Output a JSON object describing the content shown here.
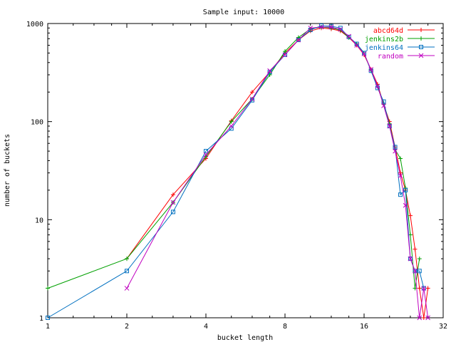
{
  "chart_data": {
    "type": "line",
    "title": "Sample input: 10000",
    "xlabel": "bucket length",
    "ylabel": "number of buckets",
    "x_scale": "log2",
    "y_scale": "log10",
    "xlim": [
      1,
      32
    ],
    "ylim": [
      1,
      1000
    ],
    "x_ticks": [
      1,
      2,
      4,
      8,
      16,
      32
    ],
    "y_ticks": [
      1,
      10,
      100,
      1000
    ],
    "grid": false,
    "legend_position": "top-right",
    "series": [
      {
        "name": "abcd64d",
        "color": "#ff0000",
        "marker": "plus",
        "points": [
          [
            2,
            4
          ],
          [
            3,
            18
          ],
          [
            4,
            42
          ],
          [
            5,
            102
          ],
          [
            6,
            200
          ],
          [
            7,
            320
          ],
          [
            8,
            500
          ],
          [
            9,
            680
          ],
          [
            10,
            840
          ],
          [
            11,
            900
          ],
          [
            12,
            880
          ],
          [
            13,
            840
          ],
          [
            14,
            720
          ],
          [
            15,
            600
          ],
          [
            16,
            480
          ],
          [
            17,
            340
          ],
          [
            18,
            240
          ],
          [
            19,
            150
          ],
          [
            20,
            100
          ],
          [
            21,
            55
          ],
          [
            22,
            30
          ],
          [
            23,
            20
          ],
          [
            24,
            11
          ],
          [
            25,
            5
          ],
          [
            26,
            2
          ],
          [
            27,
            1
          ],
          [
            28,
            2
          ]
        ]
      },
      {
        "name": "jenkins2b",
        "color": "#00a000",
        "marker": "plus",
        "points": [
          [
            1,
            2
          ],
          [
            2,
            4
          ],
          [
            3,
            15
          ],
          [
            4,
            44
          ],
          [
            5,
            100
          ],
          [
            6,
            170
          ],
          [
            7,
            300
          ],
          [
            8,
            520
          ],
          [
            9,
            720
          ],
          [
            10,
            880
          ],
          [
            11,
            920
          ],
          [
            12,
            900
          ],
          [
            13,
            860
          ],
          [
            14,
            720
          ],
          [
            15,
            620
          ],
          [
            16,
            500
          ],
          [
            17,
            330
          ],
          [
            18,
            230
          ],
          [
            19,
            150
          ],
          [
            20,
            95
          ],
          [
            21,
            52
          ],
          [
            22,
            42
          ],
          [
            23,
            21
          ],
          [
            24,
            7
          ],
          [
            25,
            2
          ],
          [
            26,
            4
          ]
        ]
      },
      {
        "name": "jenkins64",
        "color": "#0070c0",
        "marker": "square",
        "points": [
          [
            1,
            1
          ],
          [
            2,
            3
          ],
          [
            3,
            12
          ],
          [
            4,
            50
          ],
          [
            5,
            85
          ],
          [
            6,
            165
          ],
          [
            7,
            320
          ],
          [
            8,
            480
          ],
          [
            9,
            680
          ],
          [
            10,
            860
          ],
          [
            11,
            950
          ],
          [
            12,
            940
          ],
          [
            13,
            900
          ],
          [
            14,
            730
          ],
          [
            15,
            620
          ],
          [
            16,
            500
          ],
          [
            17,
            330
          ],
          [
            18,
            220
          ],
          [
            19,
            160
          ],
          [
            20,
            90
          ],
          [
            21,
            55
          ],
          [
            22,
            18
          ],
          [
            23,
            20
          ],
          [
            24,
            4
          ],
          [
            25,
            3
          ],
          [
            26,
            3
          ],
          [
            27,
            2
          ]
        ]
      },
      {
        "name": "random",
        "color": "#c000c0",
        "marker": "cross",
        "points": [
          [
            2,
            2
          ],
          [
            3,
            15
          ],
          [
            4,
            46
          ],
          [
            5,
            90
          ],
          [
            6,
            170
          ],
          [
            7,
            330
          ],
          [
            8,
            480
          ],
          [
            9,
            680
          ],
          [
            10,
            900
          ],
          [
            11,
            920
          ],
          [
            12,
            920
          ],
          [
            13,
            870
          ],
          [
            14,
            740
          ],
          [
            15,
            600
          ],
          [
            16,
            490
          ],
          [
            17,
            340
          ],
          [
            18,
            230
          ],
          [
            19,
            145
          ],
          [
            20,
            90
          ],
          [
            21,
            50
          ],
          [
            22,
            28
          ],
          [
            23,
            14
          ],
          [
            24,
            4
          ],
          [
            25,
            3
          ],
          [
            26,
            1
          ],
          [
            27,
            2
          ],
          [
            28,
            1
          ]
        ]
      }
    ]
  }
}
